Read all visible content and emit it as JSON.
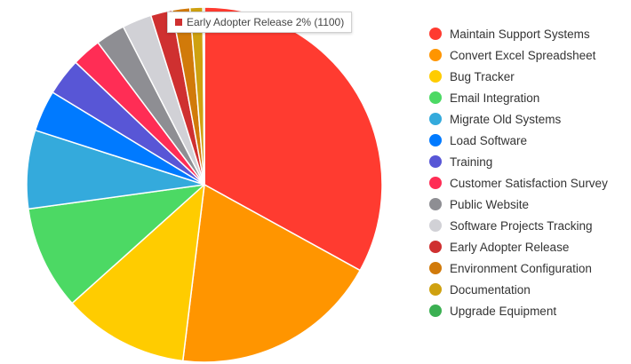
{
  "chart_data": {
    "type": "pie",
    "series": [
      {
        "name": "Maintain Support Systems",
        "value": 18500,
        "color": "#ff3b30"
      },
      {
        "name": "Convert Excel Spreadsheet",
        "value": 10600,
        "color": "#ff9500"
      },
      {
        "name": "Bug Tracker",
        "value": 6400,
        "color": "#ffcc00"
      },
      {
        "name": "Email Integration",
        "value": 5300,
        "color": "#4cd964"
      },
      {
        "name": "Migrate Old Systems",
        "value": 4000,
        "color": "#34aadc"
      },
      {
        "name": "Load Software",
        "value": 2100,
        "color": "#007aff"
      },
      {
        "name": "Training",
        "value": 1900,
        "color": "#5856d6"
      },
      {
        "name": "Customer Satisfaction Survey",
        "value": 1500,
        "color": "#ff2d55"
      },
      {
        "name": "Public Website",
        "value": 1500,
        "color": "#8e8e93"
      },
      {
        "name": "Software Projects Tracking",
        "value": 1500,
        "color": "#d1d1d6"
      },
      {
        "name": "Early Adopter Release",
        "value": 1100,
        "color": "#cf3030"
      },
      {
        "name": "Environment Configuration",
        "value": 900,
        "color": "#d17a0a"
      },
      {
        "name": "Documentation",
        "value": 650,
        "color": "#cfa110"
      },
      {
        "name": "Upgrade Equipment",
        "value": 80,
        "color": "#3bb052"
      }
    ],
    "legend_position": "right",
    "tooltip": {
      "text": "Early Adopter Release 2% (1100)",
      "color": "#cf3030",
      "series": "Early Adopter Release"
    }
  }
}
